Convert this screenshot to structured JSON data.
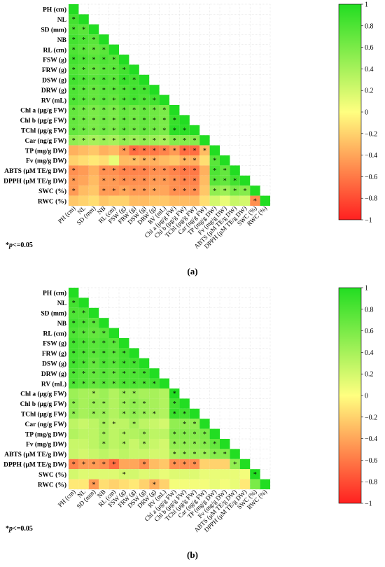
{
  "variables": [
    "PH (cm)",
    "NL",
    "SD (mm)",
    "NB",
    "RL (cm)",
    "FSW (g)",
    "FRW (g)",
    "DSW (g)",
    "DRW (g)",
    "RV (mL)",
    "Chl a (μg/g FW)",
    "Chl b (μg/g FW)",
    "TChl (μg/g FW)",
    "Car (ng/g FW)",
    "TP (mg/g DW)",
    "Fv (mg/g DW)",
    "ABTS (μM TE/g DW)",
    "DPPH (μM TE/g DW)",
    "SWC (%)",
    "RWC (%)"
  ],
  "significance_note": {
    "prefix": "*",
    "p": "p",
    "suffix": "<=0.05"
  },
  "colors": {
    "negative": "#ff2020",
    "zero": "#ffff80",
    "positive": "#22dd22",
    "grid": "#dddddd"
  },
  "chart_data": [
    {
      "type": "heatmap",
      "panel_label": "(a)",
      "colorbar": {
        "min": -1,
        "max": 1,
        "ticks": [
          "1",
          "0.8",
          "0.6",
          "0.4",
          "0.2",
          "0",
          "−0.2",
          "−0.4",
          "−0.6",
          "−0.8",
          "−1"
        ]
      },
      "layout": "lower-triangle",
      "matrix": [
        [
          1
        ],
        [
          0.85,
          1
        ],
        [
          0.8,
          0.75,
          1
        ],
        [
          0.85,
          0.8,
          0.75,
          1
        ],
        [
          0.8,
          0.75,
          0.7,
          0.75,
          1
        ],
        [
          0.85,
          0.8,
          0.75,
          0.8,
          0.75,
          1
        ],
        [
          0.8,
          0.75,
          0.7,
          0.75,
          0.75,
          0.85,
          1
        ],
        [
          0.85,
          0.8,
          0.75,
          0.8,
          0.75,
          0.9,
          0.85,
          1
        ],
        [
          0.8,
          0.75,
          0.7,
          0.75,
          0.75,
          0.8,
          0.85,
          0.85,
          1
        ],
        [
          0.8,
          0.75,
          0.7,
          0.75,
          0.7,
          0.8,
          0.85,
          0.8,
          0.85,
          1
        ],
        [
          0.7,
          0.65,
          0.6,
          0.65,
          0.6,
          0.7,
          0.65,
          0.7,
          0.65,
          0.6,
          1
        ],
        [
          0.7,
          0.65,
          0.6,
          0.65,
          0.6,
          0.7,
          0.65,
          0.7,
          0.65,
          0.6,
          0.9,
          1
        ],
        [
          0.7,
          0.65,
          0.6,
          0.65,
          0.6,
          0.7,
          0.65,
          0.7,
          0.65,
          0.6,
          0.95,
          0.95,
          1
        ],
        [
          0.5,
          0.45,
          0.4,
          0.45,
          0.4,
          0.5,
          0.45,
          0.5,
          0.45,
          0.4,
          0.55,
          0.55,
          0.55,
          1
        ],
        [
          -0.35,
          -0.3,
          -0.25,
          -0.35,
          -0.3,
          -0.45,
          -0.65,
          -0.6,
          -0.6,
          -0.55,
          -0.45,
          -0.65,
          -0.65,
          -0.3,
          1
        ],
        [
          -0.2,
          -0.15,
          -0.1,
          -0.15,
          0.1,
          -0.3,
          -0.3,
          -0.35,
          -0.35,
          -0.3,
          -0.25,
          -0.35,
          -0.35,
          -0.15,
          0.75,
          1
        ],
        [
          -0.5,
          -0.45,
          -0.35,
          -0.5,
          -0.5,
          -0.55,
          -0.55,
          -0.55,
          -0.5,
          -0.5,
          -0.55,
          -0.6,
          -0.6,
          -0.35,
          0.8,
          0.7,
          1
        ],
        [
          -0.45,
          -0.4,
          -0.3,
          -0.45,
          -0.45,
          -0.5,
          -0.5,
          -0.5,
          -0.45,
          -0.45,
          -0.5,
          -0.55,
          -0.55,
          -0.3,
          0.75,
          0.7,
          0.85,
          1
        ],
        [
          -0.45,
          -0.3,
          -0.25,
          -0.45,
          -0.45,
          -0.4,
          -0.45,
          -0.45,
          -0.4,
          -0.4,
          -0.5,
          -0.5,
          -0.5,
          -0.25,
          0.5,
          0.45,
          0.6,
          0.55,
          1
        ],
        [
          -0.25,
          -0.2,
          -0.15,
          -0.25,
          -0.2,
          -0.2,
          -0.3,
          -0.3,
          -0.25,
          -0.25,
          -0.3,
          -0.3,
          -0.3,
          -0.15,
          0.2,
          0.1,
          0.25,
          0.2,
          -0.5,
          1
        ]
      ],
      "significant": [
        [],
        [
          0
        ],
        [
          0,
          1
        ],
        [
          0,
          1,
          2
        ],
        [
          0,
          1,
          2,
          3
        ],
        [
          0,
          1,
          2,
          3,
          4
        ],
        [
          0,
          1,
          2,
          3,
          4,
          5
        ],
        [
          0,
          1,
          2,
          3,
          4,
          5,
          6
        ],
        [
          0,
          1,
          2,
          3,
          4,
          5,
          6,
          7
        ],
        [
          0,
          1,
          2,
          3,
          4,
          5,
          6,
          7,
          8
        ],
        [
          0,
          1,
          2,
          3,
          4,
          5,
          6,
          7,
          8,
          9
        ],
        [
          0,
          1,
          2,
          3,
          4,
          5,
          6,
          7,
          8,
          9,
          10
        ],
        [
          0,
          1,
          2,
          3,
          4,
          5,
          6,
          7,
          8,
          9,
          10,
          11
        ],
        [
          0,
          1,
          2,
          3,
          4,
          5,
          6,
          7,
          8,
          9,
          10,
          11,
          12
        ],
        [
          5,
          6,
          7,
          8,
          9,
          10,
          11,
          12,
          13
        ],
        [
          6,
          7,
          8,
          11,
          12,
          14
        ],
        [
          0,
          3,
          4,
          5,
          6,
          7,
          8,
          9,
          10,
          11,
          12,
          14,
          15
        ],
        [
          0,
          3,
          4,
          5,
          6,
          7,
          8,
          9,
          10,
          11,
          12,
          14,
          15,
          16
        ],
        [
          0,
          3,
          4,
          5,
          6,
          7,
          8,
          10,
          11,
          12,
          14,
          15,
          16,
          17
        ],
        [
          18
        ]
      ]
    },
    {
      "type": "heatmap",
      "panel_label": "(b)",
      "colorbar": {
        "min": -1,
        "max": 1,
        "ticks": [
          "1",
          "0.8",
          "0.6",
          "0.4",
          "0.2",
          "0",
          "−0.2",
          "−0.4",
          "−0.6",
          "−0.8",
          "−1"
        ]
      },
      "layout": "lower-triangle",
      "matrix": [
        [
          1
        ],
        [
          0.85,
          1
        ],
        [
          0.8,
          0.8,
          1
        ],
        [
          0.85,
          0.8,
          0.75,
          1
        ],
        [
          0.8,
          0.75,
          0.7,
          0.75,
          1
        ],
        [
          0.85,
          0.8,
          0.75,
          0.8,
          0.75,
          1
        ],
        [
          0.85,
          0.8,
          0.75,
          0.8,
          0.75,
          0.85,
          1
        ],
        [
          0.85,
          0.8,
          0.7,
          0.8,
          0.75,
          0.85,
          0.85,
          1
        ],
        [
          0.8,
          0.75,
          0.7,
          0.75,
          0.7,
          0.8,
          0.8,
          0.85,
          1
        ],
        [
          0.8,
          0.75,
          0.7,
          0.75,
          0.7,
          0.8,
          0.8,
          0.8,
          0.85,
          1
        ],
        [
          0.45,
          0.4,
          0.4,
          0.45,
          0.35,
          0.45,
          0.45,
          0.4,
          0.4,
          0.35,
          1
        ],
        [
          0.5,
          0.4,
          0.45,
          0.45,
          0.35,
          0.45,
          0.5,
          0.45,
          0.4,
          0.35,
          0.85,
          1
        ],
        [
          0.5,
          0.4,
          0.45,
          0.45,
          0.35,
          0.45,
          0.5,
          0.45,
          0.4,
          0.35,
          0.9,
          0.85,
          1
        ],
        [
          0.3,
          0.25,
          0.3,
          0.4,
          0.3,
          0.3,
          0.4,
          0.3,
          0.25,
          0.2,
          0.5,
          0.5,
          0.5,
          1
        ],
        [
          0.35,
          0.3,
          0.3,
          0.4,
          0.3,
          0.35,
          0.35,
          0.4,
          0.3,
          0.3,
          0.55,
          0.55,
          0.55,
          0.6,
          1
        ],
        [
          0.25,
          0.25,
          0.3,
          0.4,
          0.3,
          0.35,
          0.25,
          0.35,
          0.25,
          0.2,
          0.5,
          0.5,
          0.5,
          0.55,
          0.7,
          1
        ],
        [
          0.25,
          0.2,
          0.25,
          0.3,
          0.25,
          0.3,
          0.25,
          0.25,
          0.2,
          0.2,
          0.4,
          0.45,
          0.45,
          0.45,
          0.55,
          0.55,
          1
        ],
        [
          -0.55,
          -0.45,
          -0.45,
          -0.5,
          -0.65,
          -0.4,
          -0.4,
          -0.5,
          -0.3,
          -0.25,
          -0.5,
          -0.5,
          -0.5,
          -0.2,
          -0.2,
          -0.2,
          0.5,
          1
        ],
        [
          0.2,
          0.15,
          0.15,
          0.15,
          0.15,
          0.2,
          0.2,
          0.15,
          0.15,
          0.1,
          0.15,
          0.15,
          0.15,
          0.1,
          0.1,
          0.1,
          0.1,
          0.05,
          1
        ],
        [
          -0.1,
          -0.1,
          -0.45,
          -0.15,
          -0.2,
          -0.15,
          -0.1,
          -0.2,
          -0.35,
          -0.2,
          0.05,
          0.05,
          0.05,
          0.05,
          0.1,
          0.05,
          0.1,
          -0.1,
          0.6,
          1
        ]
      ],
      "significant": [
        [],
        [
          0
        ],
        [
          0,
          1
        ],
        [
          0,
          1,
          2
        ],
        [
          0,
          1,
          2,
          3
        ],
        [
          0,
          1,
          2,
          3,
          4
        ],
        [
          0,
          1,
          2,
          3,
          4,
          5
        ],
        [
          0,
          1,
          2,
          3,
          4,
          5,
          6
        ],
        [
          0,
          1,
          2,
          3,
          4,
          5,
          6,
          7
        ],
        [
          0,
          1,
          2,
          3,
          4,
          5,
          6,
          7,
          8
        ],
        [
          2,
          5,
          6,
          10
        ],
        [
          0,
          2,
          3,
          5,
          6,
          7,
          10
        ],
        [
          0,
          2,
          3,
          5,
          6,
          7,
          8,
          10,
          11
        ],
        [
          3,
          4,
          6,
          11,
          12
        ],
        [
          3,
          5,
          7,
          10,
          11,
          12,
          13
        ],
        [
          3,
          5,
          7,
          10,
          11,
          12,
          13,
          14
        ],
        [
          10,
          11,
          12,
          13,
          14,
          15
        ],
        [
          0,
          1,
          2,
          3,
          4,
          7,
          10,
          11,
          12,
          16
        ],
        [
          5,
          18
        ],
        [
          2,
          8
        ]
      ]
    }
  ]
}
